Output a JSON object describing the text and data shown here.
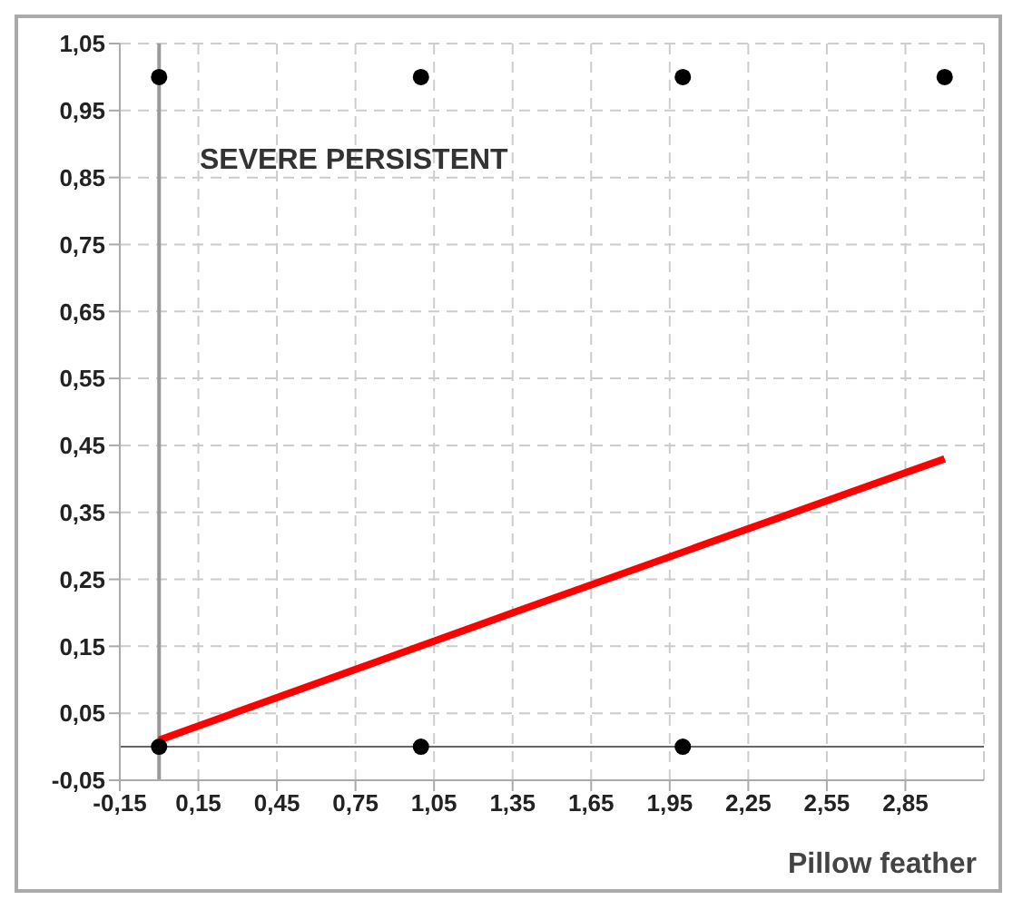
{
  "chart_data": {
    "type": "scatter",
    "xlabel": "Pillow feather",
    "annotations": [
      "SEVERE PERSISTENT"
    ],
    "series": [
      {
        "color": "#000000",
        "marker": "circle",
        "x": [
          0,
          0,
          1,
          1,
          2,
          2,
          3
        ],
        "values": [
          0,
          1,
          0,
          1,
          0,
          1,
          1
        ]
      },
      {
        "type": "line",
        "marker": "none",
        "color": "#ff0000",
        "x": [
          0,
          1.35,
          3
        ],
        "values": [
          0.01,
          0.2,
          0.43
        ]
      }
    ],
    "xlim": [
      -0.15,
      3.15
    ],
    "xticks": [
      {
        "value": -0.15,
        "label": "-0,15"
      },
      {
        "value": 0.15,
        "label": "0,15"
      },
      {
        "value": 0.45,
        "label": "0,45"
      },
      {
        "value": 0.75,
        "label": "0,75"
      },
      {
        "value": 1.05,
        "label": "1,05"
      },
      {
        "value": 1.35,
        "label": "1,35"
      },
      {
        "value": 1.65,
        "label": "1,65"
      },
      {
        "value": 1.95,
        "label": "1,95"
      },
      {
        "value": 2.25,
        "label": "2,25"
      },
      {
        "value": 2.55,
        "label": "2,55"
      },
      {
        "value": 2.85,
        "label": "2,85"
      }
    ],
    "ylim": [
      -0.05,
      1.05
    ],
    "yticks": [
      {
        "value": -0.05,
        "label": "-0,05"
      },
      {
        "value": 0.05,
        "label": "0,05"
      },
      {
        "value": 0.15,
        "label": "0,15"
      },
      {
        "value": 0.25,
        "label": "0,25"
      },
      {
        "value": 0.35,
        "label": "0,35"
      },
      {
        "value": 0.45,
        "label": "0,45"
      },
      {
        "value": 0.55,
        "label": "0,55"
      },
      {
        "value": 0.65,
        "label": "0,65"
      },
      {
        "value": 0.75,
        "label": "0,75"
      },
      {
        "value": 0.85,
        "label": "0,85"
      },
      {
        "value": 0.95,
        "label": "0,95"
      },
      {
        "value": 1.05,
        "label": "1,05"
      }
    ],
    "ref_lines": [
      {
        "axis": "x",
        "value": 0,
        "color": "#999999"
      },
      {
        "axis": "y",
        "value": 0,
        "color": "#666666"
      }
    ],
    "grid": true,
    "line_style": "solid",
    "legend": false
  }
}
